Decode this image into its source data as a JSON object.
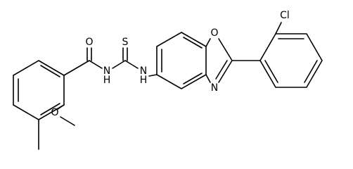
{
  "nodes": [
    {
      "label": "O"
    },
    {
      "label": "H"
    },
    {
      "label": "N"
    },
    {
      "label": "S"
    },
    {
      "label": "H"
    },
    {
      "label": "N"
    },
    {
      "label": "O"
    },
    {
      "label": "N"
    },
    {
      "label": "Cl"
    },
    {
      "label": "O"
    }
  ]
}
